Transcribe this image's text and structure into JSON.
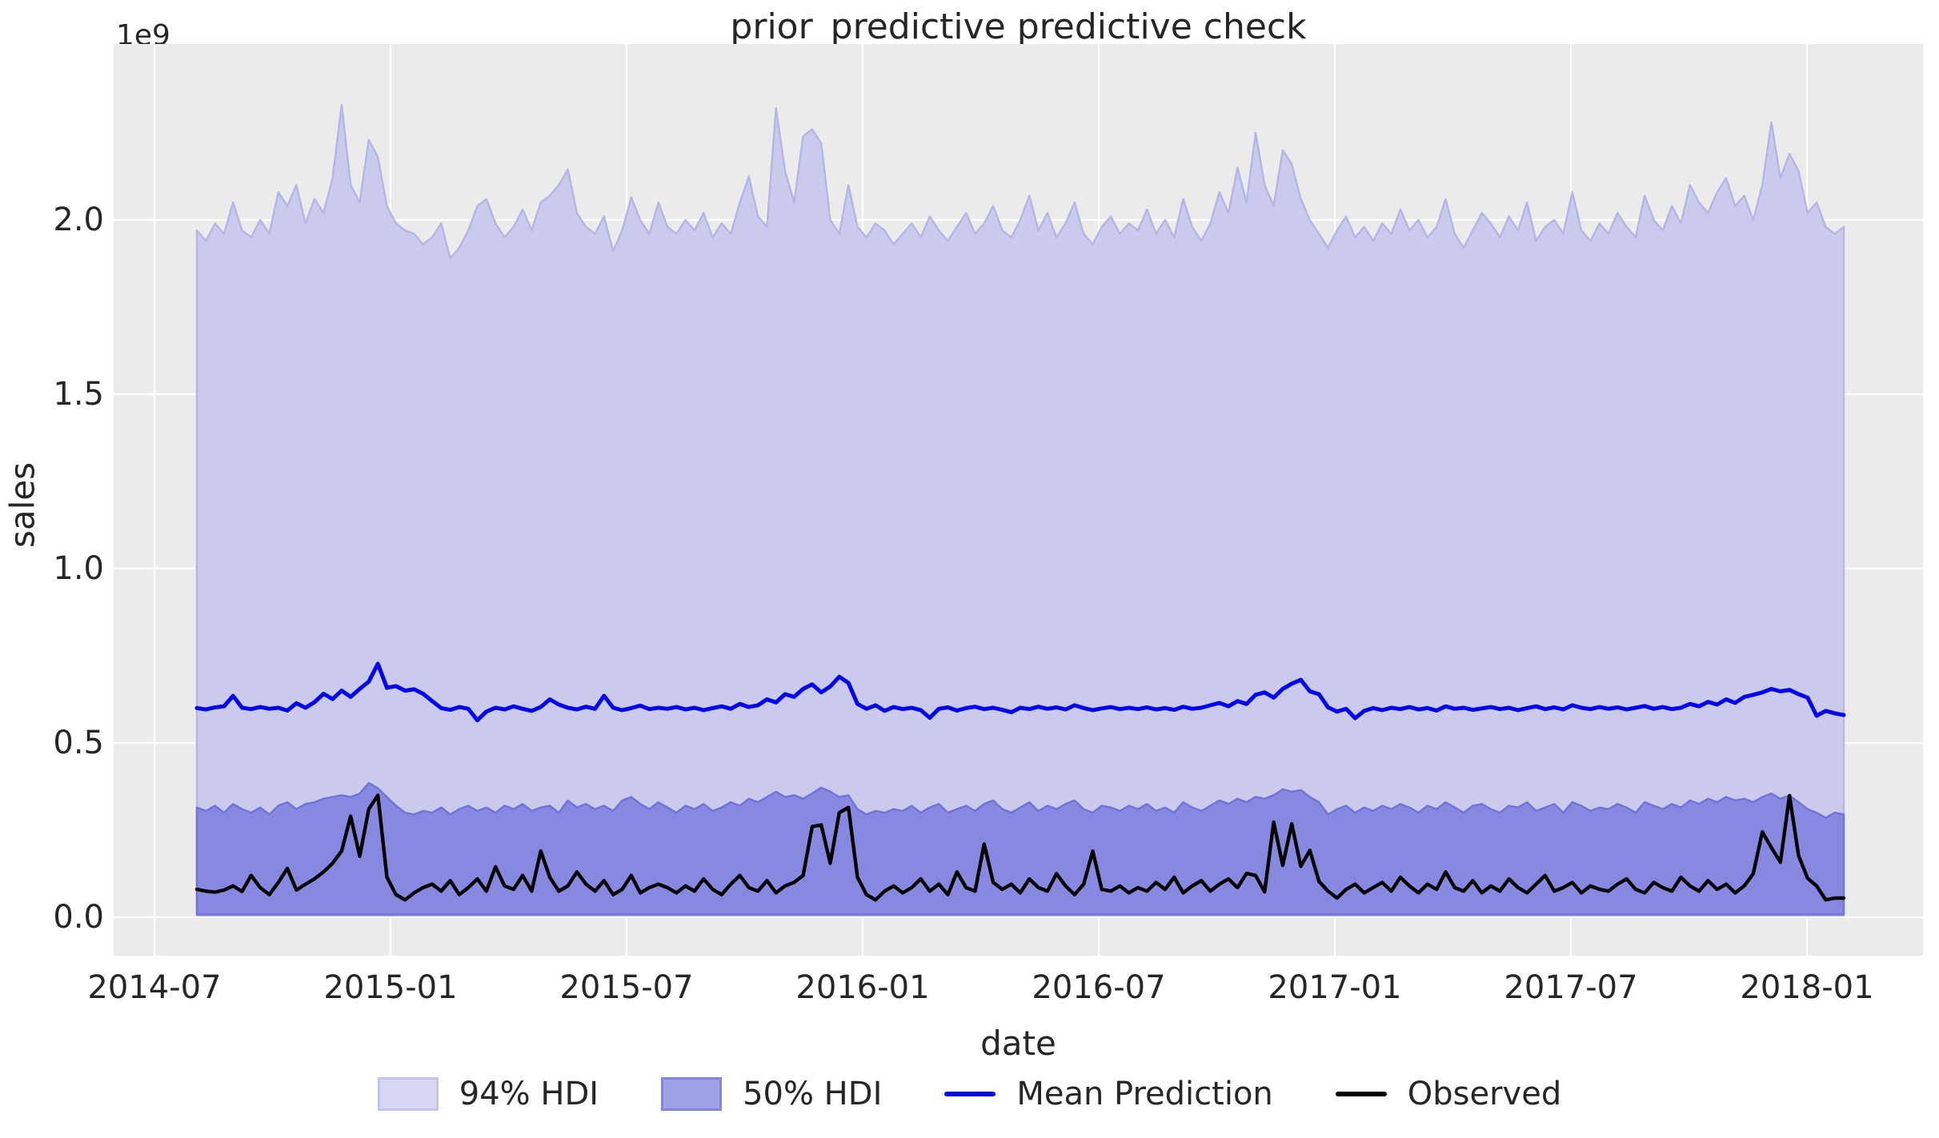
{
  "figure": {
    "title": "prior_predictive predictive check",
    "offset_label": "1e9",
    "xlabel": "date",
    "ylabel": "sales"
  },
  "axes": {
    "background_color": "#ebebeb",
    "grid_color": "#ffffff",
    "x_ticks": [
      "2014-07",
      "2015-01",
      "2015-07",
      "2016-01",
      "2016-07",
      "2017-01",
      "2017-07",
      "2018-01"
    ],
    "y_ticks": [
      "0.0",
      "0.5",
      "1.0",
      "1.5",
      "2.0"
    ],
    "y_tick_values": [
      0.0,
      0.5,
      1.0,
      1.5,
      2.0
    ]
  },
  "legend": {
    "items": [
      {
        "label": "94% HDI",
        "type": "patch",
        "fill": "#d7d7f4",
        "edge": "#c2c3ee"
      },
      {
        "label": "50% HDI",
        "type": "patch",
        "fill": "#9fa1e7",
        "edge": "#8183dd"
      },
      {
        "label": "Mean Prediction",
        "type": "line",
        "color": "#0000f2"
      },
      {
        "label": "Observed",
        "type": "line",
        "color": "#000000"
      }
    ]
  },
  "chart_data": {
    "type": "area",
    "subtype": "hdi-bands-with-lines",
    "title": "prior_predictive predictive check",
    "xlabel": "date",
    "ylabel": "sales",
    "y_scale_offset": "1e9",
    "x_axis": {
      "start_date": "2014-08-03",
      "step_days": 7,
      "count": 183,
      "tick_labels": [
        "2014-07",
        "2015-01",
        "2015-07",
        "2016-01",
        "2016-07",
        "2017-01",
        "2017-07",
        "2018-01"
      ]
    },
    "ylim": [
      -0.11,
      2.505
    ],
    "grid": true,
    "legend_position": "below",
    "units": "1e9",
    "series": [
      {
        "name": "94% HDI",
        "kind": "band",
        "fill": "#c9caec",
        "edge": "#b4b5e7",
        "lower_constant": 0.005,
        "upper": [
          1.97,
          1.94,
          1.99,
          1.96,
          2.05,
          1.97,
          1.95,
          2.0,
          1.96,
          2.08,
          2.04,
          2.1,
          1.99,
          2.06,
          2.02,
          2.12,
          2.33,
          2.1,
          2.05,
          2.23,
          2.18,
          2.04,
          1.99,
          1.97,
          1.96,
          1.93,
          1.95,
          1.99,
          1.89,
          1.92,
          1.97,
          2.04,
          2.06,
          1.99,
          1.95,
          1.98,
          2.03,
          1.97,
          2.05,
          2.07,
          2.1,
          2.145,
          2.02,
          1.98,
          1.96,
          2.01,
          1.91,
          1.97,
          2.065,
          2.0,
          1.96,
          2.05,
          1.98,
          1.96,
          2.0,
          1.97,
          2.02,
          1.95,
          1.99,
          1.96,
          2.05,
          2.125,
          2.01,
          1.98,
          2.32,
          2.14,
          2.05,
          2.24,
          2.26,
          2.22,
          2.0,
          1.96,
          2.1,
          1.98,
          1.95,
          1.99,
          1.97,
          1.93,
          1.96,
          1.99,
          1.95,
          2.01,
          1.97,
          1.94,
          1.98,
          2.02,
          1.96,
          1.99,
          2.04,
          1.97,
          1.95,
          2.0,
          2.07,
          1.97,
          2.02,
          1.95,
          1.99,
          2.05,
          1.96,
          1.93,
          1.98,
          2.01,
          1.96,
          1.99,
          1.97,
          2.03,
          1.96,
          2.0,
          1.95,
          2.06,
          1.98,
          1.94,
          1.99,
          2.08,
          2.02,
          2.15,
          2.05,
          2.25,
          2.1,
          2.04,
          2.2,
          2.16,
          2.06,
          2.0,
          1.96,
          1.92,
          1.97,
          2.01,
          1.95,
          1.98,
          1.94,
          1.99,
          1.96,
          2.03,
          1.97,
          2.0,
          1.95,
          1.98,
          2.06,
          1.96,
          1.92,
          1.97,
          2.02,
          1.99,
          1.95,
          2.01,
          1.97,
          2.05,
          1.94,
          1.98,
          2.0,
          1.96,
          2.08,
          1.97,
          1.94,
          1.99,
          1.96,
          2.02,
          1.98,
          1.95,
          2.07,
          2.0,
          1.97,
          2.04,
          1.99,
          2.1,
          2.05,
          2.02,
          2.08,
          2.12,
          2.04,
          2.07,
          2.0,
          2.1,
          2.28,
          2.12,
          2.19,
          2.14,
          2.02,
          2.05,
          1.98,
          1.96,
          1.98
        ]
      },
      {
        "name": "50% HDI",
        "kind": "band",
        "fill": "#8789e0",
        "edge": "#6f72da",
        "lower_constant": 0.008,
        "upper": [
          0.315,
          0.305,
          0.32,
          0.3,
          0.325,
          0.31,
          0.3,
          0.315,
          0.295,
          0.32,
          0.33,
          0.31,
          0.325,
          0.33,
          0.34,
          0.345,
          0.35,
          0.345,
          0.355,
          0.385,
          0.37,
          0.345,
          0.32,
          0.3,
          0.295,
          0.305,
          0.3,
          0.315,
          0.295,
          0.31,
          0.32,
          0.305,
          0.315,
          0.3,
          0.32,
          0.31,
          0.325,
          0.305,
          0.315,
          0.32,
          0.3,
          0.335,
          0.315,
          0.325,
          0.31,
          0.32,
          0.305,
          0.335,
          0.345,
          0.325,
          0.31,
          0.33,
          0.315,
          0.3,
          0.32,
          0.31,
          0.325,
          0.305,
          0.315,
          0.33,
          0.32,
          0.34,
          0.33,
          0.345,
          0.36,
          0.345,
          0.35,
          0.34,
          0.355,
          0.372,
          0.36,
          0.345,
          0.35,
          0.31,
          0.295,
          0.305,
          0.3,
          0.31,
          0.305,
          0.32,
          0.3,
          0.315,
          0.325,
          0.3,
          0.31,
          0.32,
          0.305,
          0.325,
          0.335,
          0.31,
          0.3,
          0.315,
          0.33,
          0.305,
          0.32,
          0.31,
          0.325,
          0.335,
          0.31,
          0.3,
          0.32,
          0.315,
          0.305,
          0.32,
          0.31,
          0.325,
          0.305,
          0.315,
          0.3,
          0.33,
          0.315,
          0.305,
          0.32,
          0.335,
          0.325,
          0.34,
          0.33,
          0.345,
          0.34,
          0.35,
          0.367,
          0.36,
          0.365,
          0.345,
          0.33,
          0.295,
          0.31,
          0.32,
          0.3,
          0.315,
          0.305,
          0.32,
          0.31,
          0.325,
          0.315,
          0.3,
          0.32,
          0.31,
          0.33,
          0.315,
          0.3,
          0.32,
          0.325,
          0.31,
          0.3,
          0.32,
          0.315,
          0.33,
          0.305,
          0.315,
          0.325,
          0.3,
          0.33,
          0.32,
          0.305,
          0.315,
          0.31,
          0.325,
          0.315,
          0.3,
          0.33,
          0.32,
          0.31,
          0.325,
          0.315,
          0.335,
          0.325,
          0.34,
          0.33,
          0.345,
          0.335,
          0.34,
          0.33,
          0.345,
          0.355,
          0.34,
          0.349,
          0.33,
          0.31,
          0.3,
          0.285,
          0.3,
          0.295
        ]
      },
      {
        "name": "Mean Prediction",
        "kind": "line",
        "color": "#0000f2",
        "values": [
          0.6,
          0.596,
          0.602,
          0.605,
          0.635,
          0.601,
          0.597,
          0.603,
          0.598,
          0.601,
          0.593,
          0.614,
          0.601,
          0.617,
          0.641,
          0.626,
          0.65,
          0.632,
          0.655,
          0.676,
          0.727,
          0.658,
          0.663,
          0.65,
          0.654,
          0.641,
          0.62,
          0.6,
          0.595,
          0.603,
          0.598,
          0.565,
          0.59,
          0.601,
          0.596,
          0.605,
          0.598,
          0.592,
          0.603,
          0.625,
          0.61,
          0.601,
          0.596,
          0.604,
          0.598,
          0.635,
          0.601,
          0.594,
          0.6,
          0.607,
          0.597,
          0.601,
          0.598,
          0.603,
          0.596,
          0.601,
          0.594,
          0.6,
          0.605,
          0.598,
          0.612,
          0.603,
          0.608,
          0.625,
          0.616,
          0.64,
          0.632,
          0.655,
          0.668,
          0.645,
          0.662,
          0.69,
          0.672,
          0.612,
          0.598,
          0.608,
          0.592,
          0.603,
          0.597,
          0.601,
          0.594,
          0.572,
          0.598,
          0.602,
          0.593,
          0.6,
          0.604,
          0.597,
          0.601,
          0.595,
          0.588,
          0.601,
          0.597,
          0.604,
          0.598,
          0.602,
          0.596,
          0.608,
          0.6,
          0.594,
          0.599,
          0.603,
          0.597,
          0.601,
          0.597,
          0.602,
          0.596,
          0.6,
          0.595,
          0.604,
          0.598,
          0.601,
          0.608,
          0.615,
          0.605,
          0.62,
          0.612,
          0.638,
          0.645,
          0.63,
          0.655,
          0.67,
          0.681,
          0.648,
          0.64,
          0.602,
          0.59,
          0.598,
          0.571,
          0.592,
          0.6,
          0.594,
          0.601,
          0.597,
          0.603,
          0.596,
          0.6,
          0.593,
          0.605,
          0.598,
          0.601,
          0.595,
          0.599,
          0.603,
          0.597,
          0.601,
          0.594,
          0.6,
          0.605,
          0.597,
          0.602,
          0.596,
          0.608,
          0.601,
          0.597,
          0.603,
          0.598,
          0.602,
          0.596,
          0.601,
          0.606,
          0.598,
          0.603,
          0.597,
          0.601,
          0.612,
          0.605,
          0.618,
          0.61,
          0.625,
          0.615,
          0.632,
          0.638,
          0.645,
          0.655,
          0.648,
          0.652,
          0.64,
          0.63,
          0.578,
          0.592,
          0.585,
          0.58
        ]
      },
      {
        "name": "Observed",
        "kind": "line",
        "color": "#000000",
        "values": [
          0.08,
          0.075,
          0.072,
          0.078,
          0.09,
          0.074,
          0.12,
          0.085,
          0.065,
          0.1,
          0.14,
          0.078,
          0.095,
          0.11,
          0.13,
          0.155,
          0.19,
          0.29,
          0.175,
          0.31,
          0.35,
          0.115,
          0.065,
          0.05,
          0.07,
          0.085,
          0.095,
          0.075,
          0.105,
          0.065,
          0.085,
          0.11,
          0.075,
          0.145,
          0.09,
          0.08,
          0.12,
          0.075,
          0.19,
          0.115,
          0.075,
          0.09,
          0.13,
          0.095,
          0.075,
          0.105,
          0.065,
          0.08,
          0.12,
          0.07,
          0.085,
          0.095,
          0.085,
          0.07,
          0.09,
          0.075,
          0.11,
          0.08,
          0.065,
          0.095,
          0.12,
          0.085,
          0.075,
          0.105,
          0.07,
          0.09,
          0.1,
          0.12,
          0.26,
          0.265,
          0.155,
          0.3,
          0.315,
          0.115,
          0.065,
          0.05,
          0.075,
          0.09,
          0.07,
          0.085,
          0.11,
          0.075,
          0.095,
          0.065,
          0.13,
          0.085,
          0.075,
          0.21,
          0.1,
          0.08,
          0.095,
          0.07,
          0.11,
          0.085,
          0.075,
          0.125,
          0.09,
          0.065,
          0.095,
          0.19,
          0.08,
          0.075,
          0.09,
          0.07,
          0.085,
          0.075,
          0.1,
          0.08,
          0.115,
          0.07,
          0.09,
          0.105,
          0.075,
          0.095,
          0.11,
          0.085,
          0.126,
          0.12,
          0.073,
          0.273,
          0.149,
          0.268,
          0.146,
          0.192,
          0.103,
          0.075,
          0.055,
          0.08,
          0.095,
          0.07,
          0.085,
          0.1,
          0.075,
          0.115,
          0.09,
          0.07,
          0.095,
          0.08,
          0.13,
          0.085,
          0.075,
          0.105,
          0.07,
          0.09,
          0.075,
          0.11,
          0.085,
          0.07,
          0.095,
          0.12,
          0.075,
          0.085,
          0.1,
          0.07,
          0.09,
          0.08,
          0.075,
          0.095,
          0.11,
          0.08,
          0.07,
          0.1,
          0.085,
          0.075,
          0.115,
          0.09,
          0.075,
          0.105,
          0.08,
          0.095,
          0.07,
          0.09,
          0.125,
          0.245,
          0.2,
          0.158,
          0.349,
          0.177,
          0.112,
          0.09,
          0.05,
          0.055,
          0.055
        ]
      }
    ]
  }
}
